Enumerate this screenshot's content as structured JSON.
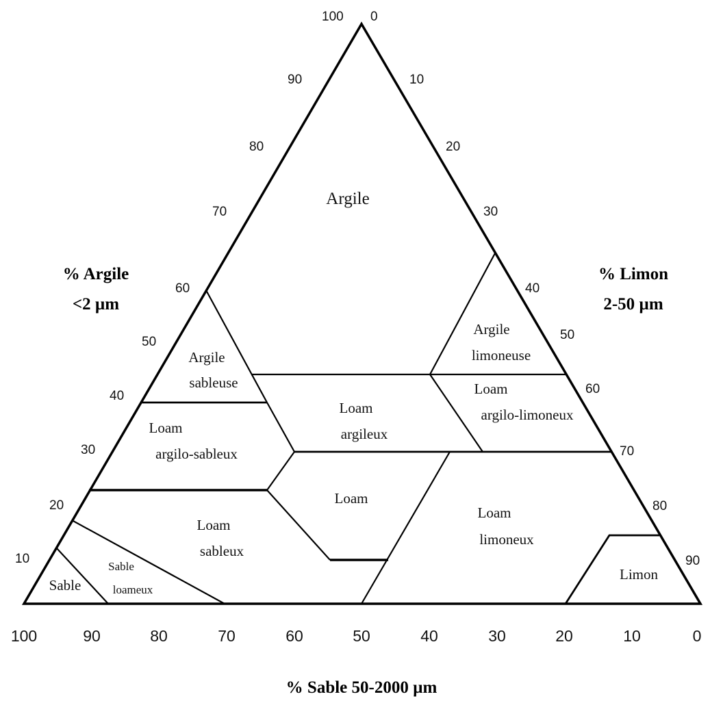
{
  "axes": {
    "clay": {
      "label_line1": "% Argile",
      "label_line2": "<2 µm"
    },
    "silt": {
      "label_line1": "% Limon",
      "label_line2": "2-50 µm"
    },
    "sand": {
      "label": "% Sable 50-2000 µm"
    }
  },
  "ticks": {
    "left": [
      "100",
      "90",
      "80",
      "70",
      "60",
      "50",
      "40",
      "30",
      "20",
      "10"
    ],
    "right": [
      "0",
      "10",
      "20",
      "30",
      "40",
      "50",
      "60",
      "70",
      "80",
      "90"
    ],
    "bottom": [
      "100",
      "90",
      "80",
      "70",
      "60",
      "50",
      "40",
      "30",
      "20",
      "10",
      "0"
    ]
  },
  "regions": {
    "argile": "Argile",
    "argile_limoneuse_1": "Argile",
    "argile_limoneuse_2": "limoneuse",
    "argile_sableuse_1": "Argile",
    "argile_sableuse_2": "sableuse",
    "loam_argileux_1": "Loam",
    "loam_argileux_2": "argileux",
    "loam_argilo_limoneux_1": "Loam",
    "loam_argilo_limoneux_2": "argilo-limoneux",
    "loam_argilo_sableux_1": "Loam",
    "loam_argilo_sableux_2": "argilo-sableux",
    "loam": "Loam",
    "loam_limoneux_1": "Loam",
    "loam_limoneux_2": "limoneux",
    "loam_sableux_1": "Loam",
    "loam_sableux_2": "sableux",
    "sable": "Sable",
    "sable_loameux_1": "Sable",
    "sable_loameux_2": "loameux",
    "limon": "Limon"
  }
}
